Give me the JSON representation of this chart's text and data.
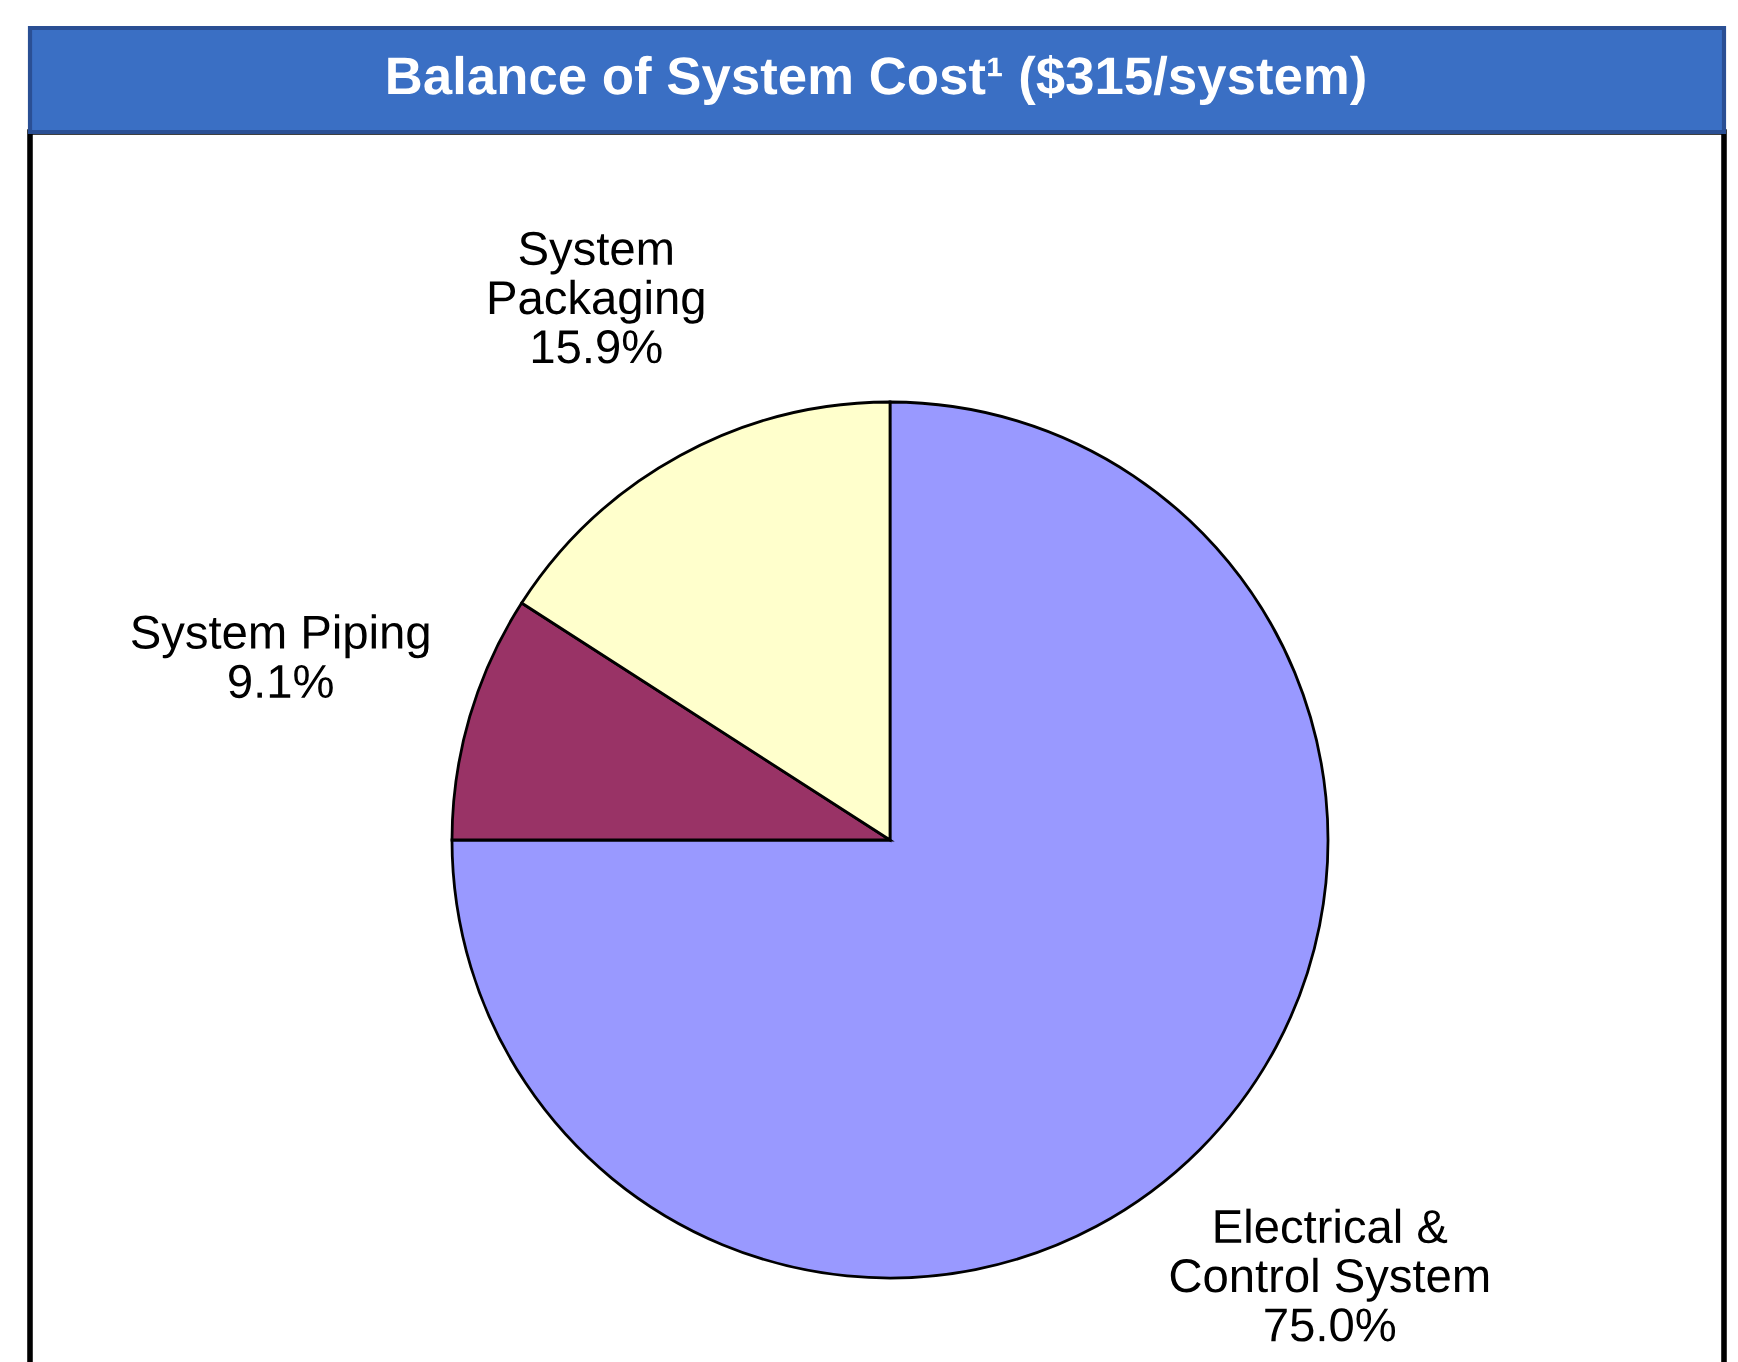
{
  "chart_data": {
    "type": "pie",
    "title": "Balance of System Cost¹ ($315/system)",
    "categories": [
      "Electrical & Control System",
      "System Piping",
      "System Packaging"
    ],
    "values": [
      75.0,
      9.1,
      15.9
    ],
    "colors": [
      "#9999ff",
      "#993366",
      "#ffffcc"
    ],
    "value_labels": [
      "75.0%",
      "9.1%",
      "15.9%"
    ]
  }
}
